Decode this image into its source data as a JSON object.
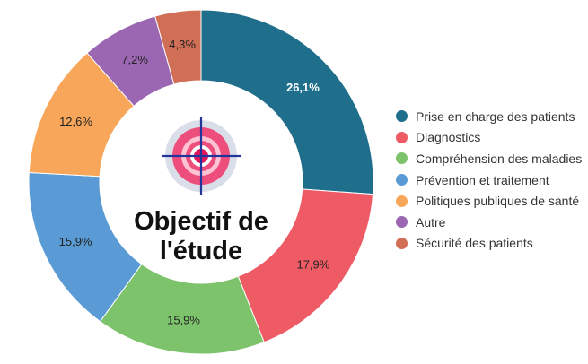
{
  "chart_data": {
    "type": "pie",
    "title_lines": [
      "Objectif de",
      "l'étude"
    ],
    "unit": "%",
    "legend_position": "right",
    "series": [
      {
        "name": "Prise en charge des patients",
        "value": 26.1,
        "label": "26,1%",
        "color": "#1F6E8C",
        "label_color": "#ffffff"
      },
      {
        "name": "Diagnostics",
        "value": 17.9,
        "label": "17,9%",
        "color": "#EF5B65",
        "label_color": "#222222"
      },
      {
        "name": "Compréhension des maladies",
        "value": 15.9,
        "label": "15,9%",
        "color": "#7CC36B",
        "label_color": "#222222"
      },
      {
        "name": "Prévention et traitement",
        "value": 15.9,
        "label": "15,9%",
        "color": "#5B9BD5",
        "label_color": "#222222"
      },
      {
        "name": "Politiques publiques de santé",
        "value": 12.6,
        "label": "12,6%",
        "color": "#F8A65A",
        "label_color": "#222222"
      },
      {
        "name": "Autre",
        "value": 7.2,
        "label": "7,2%",
        "color": "#9B66B2",
        "label_color": "#222222"
      },
      {
        "name": "Sécurité des patients",
        "value": 4.3,
        "label": "4,3%",
        "color": "#D06E56",
        "label_color": "#222222"
      }
    ],
    "center_icon": "target-icon",
    "icon_colors": {
      "outer_ring": "#D9DEE8",
      "ring": "#EE4E7B",
      "inner": "#FFC2D4",
      "dot": "#E2185B",
      "crosshair": "#22359E"
    }
  }
}
